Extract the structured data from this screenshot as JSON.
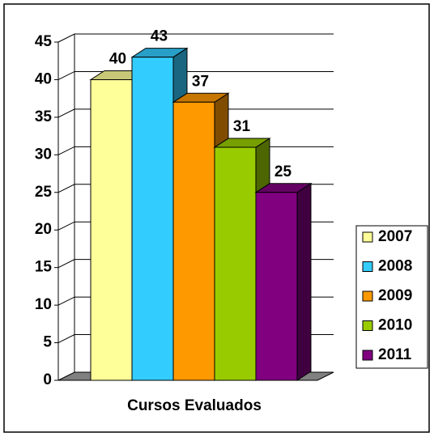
{
  "chart_data": {
    "type": "bar3d",
    "categories": [
      "Cursos Evaluados"
    ],
    "series": [
      {
        "name": "2007",
        "color": "#ffff99",
        "values": [
          40
        ]
      },
      {
        "name": "2008",
        "color": "#33ccff",
        "values": [
          43
        ]
      },
      {
        "name": "2009",
        "color": "#ff9900",
        "values": [
          37
        ]
      },
      {
        "name": "2010",
        "color": "#99cc00",
        "values": [
          31
        ]
      },
      {
        "name": "2011",
        "color": "#800080",
        "values": [
          25
        ]
      }
    ],
    "ylim": [
      0,
      45
    ],
    "yticks": [
      0,
      5,
      10,
      15,
      20,
      25,
      30,
      35,
      40,
      45
    ],
    "grid": true,
    "legend": "right"
  }
}
